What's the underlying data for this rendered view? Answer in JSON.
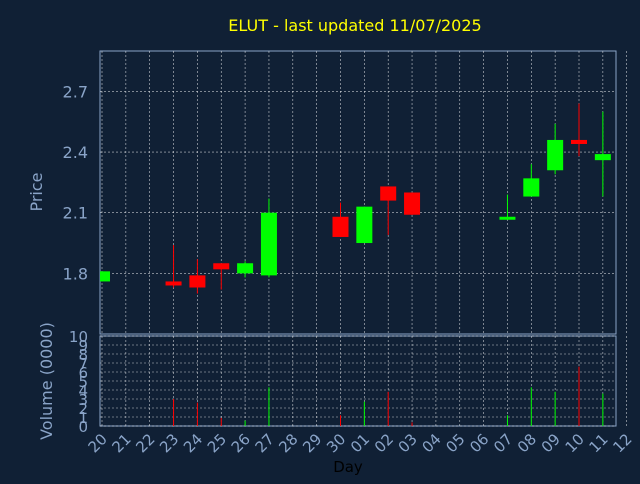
{
  "chart_data": {
    "type": "candlestick",
    "title": "ELUT - last updated 11/07/2025",
    "ylabel": "Price",
    "volume_ylabel": "Volume (0000)",
    "xlabel": "Day",
    "ylim": [
      1.5,
      2.9
    ],
    "yticks": [
      1.8,
      2.1,
      2.4,
      2.7
    ],
    "volume_ylim": [
      0,
      10
    ],
    "volume_yticks": [
      0,
      1,
      2,
      3,
      4,
      5,
      6,
      7,
      8,
      9,
      10
    ],
    "x_ticks": [
      "20",
      "21",
      "22",
      "23",
      "24",
      "25",
      "26",
      "27",
      "28",
      "29",
      "30",
      "01",
      "02",
      "03",
      "04",
      "05",
      "06",
      "07",
      "08",
      "09",
      "10",
      "11",
      "12"
    ],
    "grid": true,
    "colors": {
      "background": "#102035",
      "up": "#00ff00",
      "down": "#ff0000",
      "grid": "#ffffff",
      "axis": "#8aa4c8",
      "title": "#ffff00"
    },
    "candles": [
      {
        "day": "20",
        "open": 1.76,
        "high": 1.81,
        "low": 1.76,
        "close": 1.81,
        "volume": 0.0
      },
      {
        "day": "23",
        "open": 1.76,
        "high": 1.94,
        "low": 1.73,
        "close": 1.74,
        "volume": 3.0
      },
      {
        "day": "24",
        "open": 1.79,
        "high": 1.87,
        "low": 1.7,
        "close": 1.73,
        "volume": 2.6
      },
      {
        "day": "25",
        "open": 1.85,
        "high": 1.85,
        "low": 1.72,
        "close": 1.82,
        "volume": 0.9
      },
      {
        "day": "26",
        "open": 1.8,
        "high": 1.86,
        "low": 1.78,
        "close": 1.85,
        "volume": 0.6
      },
      {
        "day": "27",
        "open": 1.79,
        "high": 2.17,
        "low": 1.78,
        "close": 2.1,
        "volume": 4.3
      },
      {
        "day": "30",
        "open": 2.08,
        "high": 2.15,
        "low": 1.98,
        "close": 1.98,
        "volume": 1.2
      },
      {
        "day": "01",
        "open": 1.95,
        "high": 2.13,
        "low": 1.95,
        "close": 2.13,
        "volume": 2.7
      },
      {
        "day": "02",
        "open": 2.23,
        "high": 2.23,
        "low": 1.99,
        "close": 2.16,
        "volume": 3.8
      },
      {
        "day": "03",
        "open": 2.2,
        "high": 2.2,
        "low": 2.09,
        "close": 2.09,
        "volume": 0.4
      },
      {
        "day": "07",
        "open": 2.07,
        "high": 2.19,
        "low": 2.07,
        "close": 2.08,
        "volume": 1.2
      },
      {
        "day": "08",
        "open": 2.18,
        "high": 2.34,
        "low": 2.18,
        "close": 2.27,
        "volume": 4.3
      },
      {
        "day": "09",
        "open": 2.31,
        "high": 2.54,
        "low": 2.29,
        "close": 2.46,
        "volume": 3.8
      },
      {
        "day": "10",
        "open": 2.46,
        "high": 2.64,
        "low": 2.38,
        "close": 2.44,
        "volume": 6.6
      },
      {
        "day": "11",
        "open": 2.36,
        "high": 2.6,
        "low": 2.18,
        "close": 2.39,
        "volume": 3.6
      }
    ]
  }
}
